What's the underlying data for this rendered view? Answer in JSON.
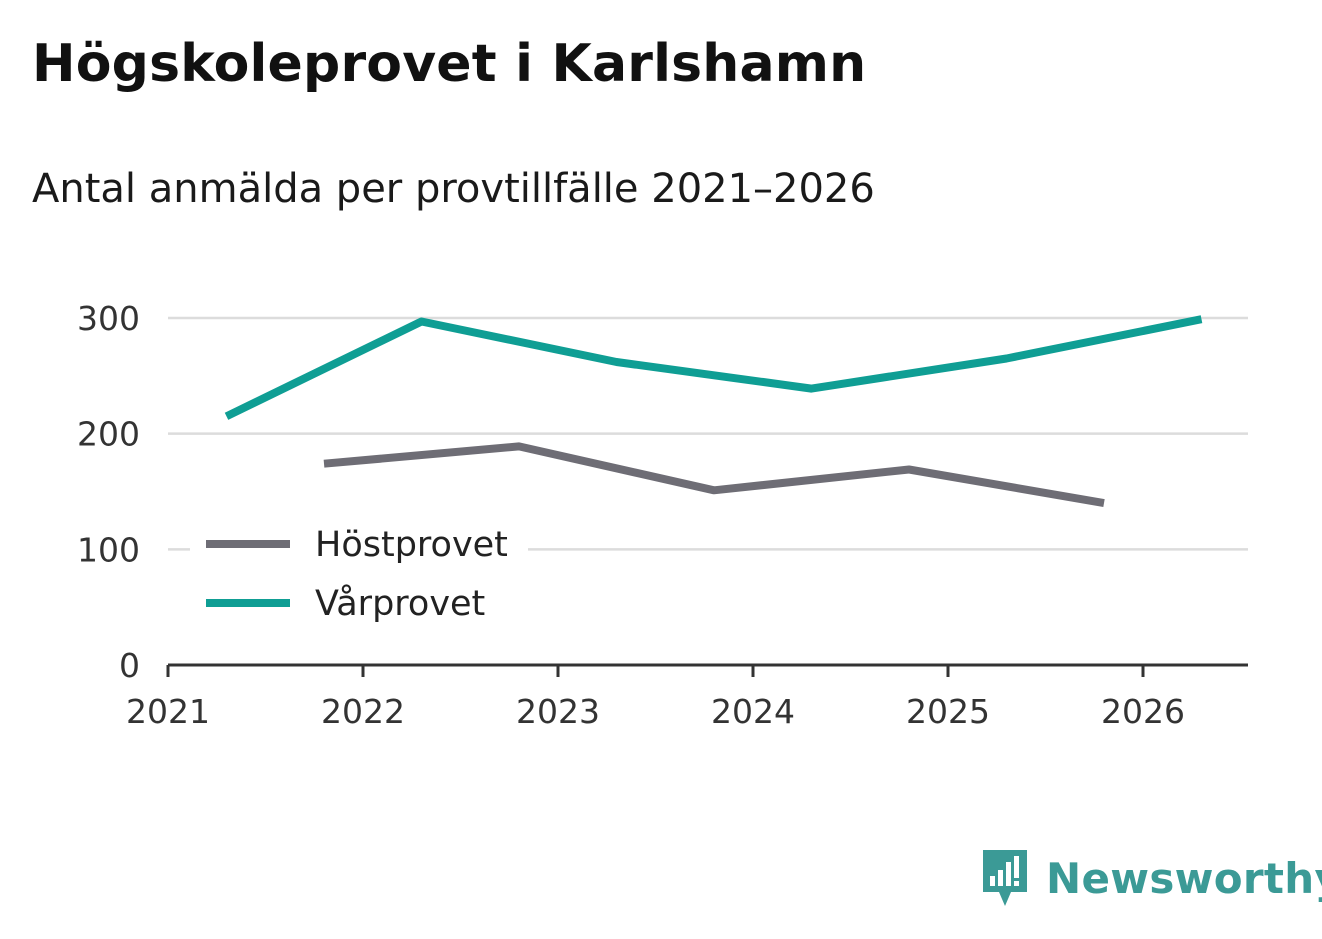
{
  "header": {
    "title": "Högskoleprovet i Karlshamn",
    "subtitle": "Antal anmälda per provtillfälle 2021–2026"
  },
  "brand": {
    "name": "Newsworthy",
    "icon": "newsworthy-logo-icon",
    "color": "#3b9a96"
  },
  "chart_data": {
    "type": "line",
    "title": "Högskoleprovet i Karlshamn",
    "subtitle": "Antal anmälda per provtillfälle 2021–2026",
    "xlabel": "",
    "ylabel": "",
    "xlim": [
      2021,
      2026.55
    ],
    "ylim": [
      0,
      300
    ],
    "x_ticks": [
      2021,
      2022,
      2023,
      2024,
      2025,
      2026
    ],
    "y_ticks": [
      0,
      100,
      200,
      300
    ],
    "grid": true,
    "legend_position": "bottom-left",
    "series": [
      {
        "name": "Höstprovet",
        "color": "#6e6d75",
        "x": [
          2021.8,
          2022.8,
          2023.8,
          2024.8,
          2025.8
        ],
        "values": [
          174,
          189,
          151,
          169,
          140
        ]
      },
      {
        "name": "Vårprovet",
        "color": "#0f9e94",
        "x": [
          2021.3,
          2022.3,
          2023.3,
          2024.3,
          2025.3,
          2026.3
        ],
        "values": [
          215,
          297,
          262,
          239,
          265,
          299
        ]
      }
    ]
  }
}
